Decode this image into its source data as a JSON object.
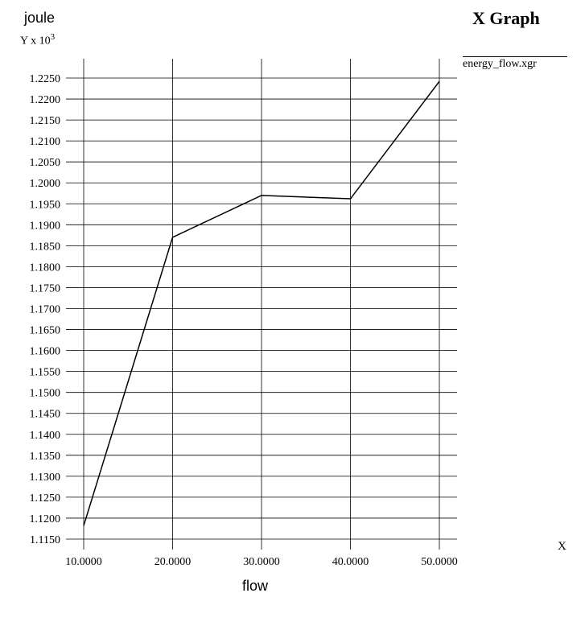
{
  "chart_data": {
    "type": "line",
    "title": "X Graph",
    "xlabel": "flow",
    "xaxis_name": "X",
    "ylabel": "joule",
    "yscale_label": "Y x 10",
    "yscale_exponent": "3",
    "x_ticks": [
      "10.0000",
      "20.0000",
      "30.0000",
      "40.0000",
      "50.0000"
    ],
    "x_tick_values": [
      10,
      20,
      30,
      40,
      50
    ],
    "y_ticks": [
      "1.1150",
      "1.1200",
      "1.1250",
      "1.1300",
      "1.1350",
      "1.1400",
      "1.1450",
      "1.1500",
      "1.1550",
      "1.1600",
      "1.1650",
      "1.1700",
      "1.1750",
      "1.1800",
      "1.1850",
      "1.1900",
      "1.1950",
      "1.2000",
      "1.2050",
      "1.2100",
      "1.2150",
      "1.2200",
      "1.2250"
    ],
    "y_tick_values": [
      1.115,
      1.12,
      1.125,
      1.13,
      1.135,
      1.14,
      1.145,
      1.15,
      1.155,
      1.16,
      1.165,
      1.17,
      1.175,
      1.18,
      1.185,
      1.19,
      1.195,
      1.2,
      1.205,
      1.21,
      1.215,
      1.22,
      1.225
    ],
    "xlim": [
      10,
      50
    ],
    "ylim": [
      1.115,
      1.2275
    ],
    "grid": true,
    "legend_position": "top-right",
    "series": [
      {
        "name": "energy_flow.xgr",
        "color": "#000000",
        "x": [
          10,
          20,
          30,
          40,
          50
        ],
        "y": [
          1.1182,
          1.187,
          1.197,
          1.1962,
          1.2242
        ]
      }
    ]
  }
}
